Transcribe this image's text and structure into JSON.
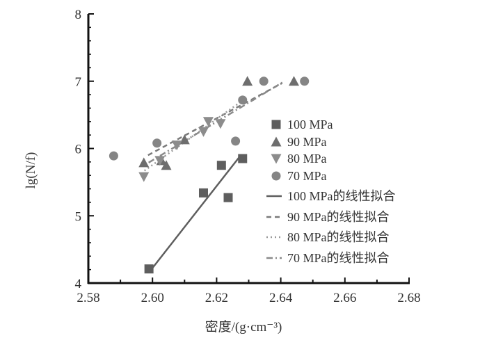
{
  "chart_data": {
    "type": "scatter",
    "xlabel": "密度/(g·cm⁻³)",
    "ylabel": "lg(N/f)",
    "xlim": [
      2.58,
      2.68
    ],
    "ylim": [
      4,
      8
    ],
    "xticks": [
      "2.58",
      "2.60",
      "2.62",
      "2.64",
      "2.66",
      "2.68"
    ],
    "yticks": [
      "4",
      "5",
      "6",
      "7",
      "8"
    ],
    "grid": false,
    "legend_placement": "right-center",
    "series": [
      {
        "name": "100 MPa",
        "marker": "square",
        "color": "#5e5e5e",
        "points": [
          [
            2.5989,
            4.21
          ],
          [
            2.6159,
            5.34
          ],
          [
            2.6215,
            5.75
          ],
          [
            2.6236,
            5.27
          ],
          [
            2.6281,
            5.85
          ]
        ]
      },
      {
        "name": "90 MPa",
        "marker": "triangle-up",
        "color": "#6e6e6e",
        "points": [
          [
            2.5973,
            5.79
          ],
          [
            2.6028,
            5.82
          ],
          [
            2.6043,
            5.75
          ],
          [
            2.61,
            6.13
          ],
          [
            2.6296,
            7.0
          ],
          [
            2.6441,
            7.0
          ]
        ]
      },
      {
        "name": "80 MPa",
        "marker": "triangle-down",
        "color": "#8c8c8c",
        "points": [
          [
            2.5973,
            5.58
          ],
          [
            2.6023,
            5.82
          ],
          [
            2.6076,
            6.05
          ],
          [
            2.6159,
            6.25
          ],
          [
            2.6174,
            6.4
          ],
          [
            2.6212,
            6.37
          ]
        ]
      },
      {
        "name": "70 MPa",
        "marker": "circle",
        "color": "#858585",
        "points": [
          [
            2.5879,
            5.89
          ],
          [
            2.6014,
            6.08
          ],
          [
            2.6259,
            6.11
          ],
          [
            2.6281,
            6.72
          ],
          [
            2.6347,
            7.0
          ],
          [
            2.6474,
            7.0
          ]
        ]
      }
    ],
    "fits": [
      {
        "name": "100 MPa的线性拟合",
        "dash": "solid",
        "color": "#5e5e5e",
        "from": [
          2.6001,
          4.23
        ],
        "to": [
          2.6272,
          5.88
        ]
      },
      {
        "name": "90 MPa的线性拟合",
        "dash": "dash",
        "color": "#7a7a7a",
        "from": [
          2.5986,
          5.9
        ],
        "to": [
          2.6404,
          6.97
        ]
      },
      {
        "name": "80 MPa的线性拟合",
        "dash": "dot",
        "color": "#9a9a9a",
        "from": [
          2.5975,
          5.67
        ],
        "to": [
          2.6286,
          6.73
        ]
      },
      {
        "name": "70 MPa的线性拟合",
        "dash": "dashdot",
        "color": "#8a8a8a",
        "from": [
          2.5988,
          5.79
        ],
        "to": [
          2.6408,
          6.99
        ]
      }
    ]
  }
}
